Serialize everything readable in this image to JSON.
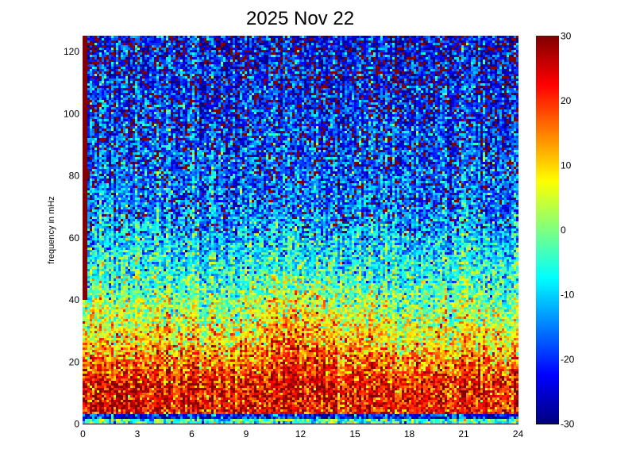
{
  "chart_data": {
    "type": "heatmap",
    "title": "2025 Nov 22",
    "xlabel": "",
    "ylabel": "frequency in mHz",
    "xlim": [
      0,
      24
    ],
    "ylim": [
      0,
      125
    ],
    "x_ticks": [
      "0",
      "3",
      "6",
      "9",
      "12",
      "15",
      "18",
      "21",
      "24"
    ],
    "y_ticks": [
      "0",
      "20",
      "40",
      "60",
      "80",
      "100",
      "120"
    ],
    "x_tick_values": [
      0,
      3,
      6,
      9,
      12,
      15,
      18,
      21,
      24
    ],
    "y_tick_values": [
      0,
      20,
      40,
      60,
      80,
      100,
      120
    ],
    "colormap": "jet",
    "colorbar": {
      "range": [
        -30,
        30
      ],
      "ticks": [
        "30",
        "20",
        "10",
        "0",
        "-10",
        "-20",
        "-30"
      ],
      "tick_values": [
        30,
        20,
        10,
        0,
        -10,
        -20,
        -30
      ]
    },
    "grid": false,
    "description_levels": {
      "low_frequency_0_15_mHz": "about 15 to 25 (yellow to red)",
      "frequency_20_40_mHz": "about 0 to 10 (green to yellow)",
      "frequency_60_120_mHz": "about -25 to -10 (blue) with scattered high (dark red) speckles"
    }
  }
}
